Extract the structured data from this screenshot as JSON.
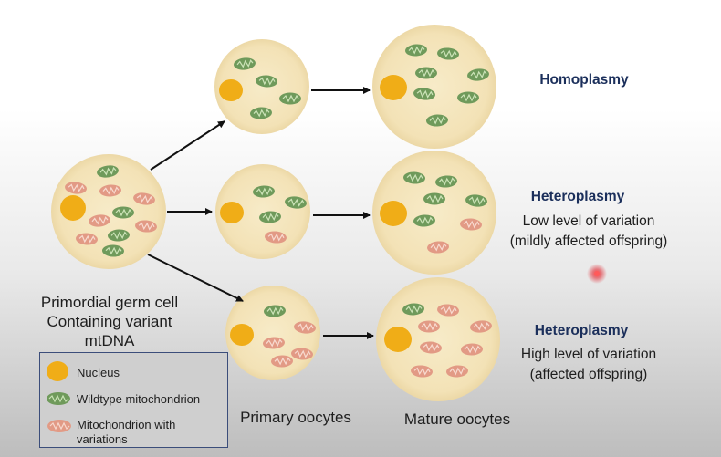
{
  "labels": {
    "germ_cell": [
      "Primordial germ cell",
      "Containing variant",
      "mtDNA"
    ],
    "primary_oocytes": "Primary oocytes",
    "mature_oocytes": "Mature oocytes"
  },
  "outcomes": [
    {
      "title": "Homoplasmy",
      "lines": []
    },
    {
      "title": "Heteroplasmy",
      "lines": [
        "Low level of variation",
        "(mildly affected offspring)"
      ]
    },
    {
      "title": "Heteroplasmy",
      "lines": [
        "High level of variation",
        "(affected offspring)"
      ]
    }
  ],
  "legend": {
    "nucleus": "Nucleus",
    "wildtype": "Wildtype mitochondrion",
    "variant": [
      "Mitochondrion with",
      "variations"
    ]
  },
  "colors": {
    "cell_fill": "#f4e6bf",
    "nucleus": "#f0ad17",
    "wildtype_mito": "#6f9a5b",
    "variant_mito": "#e29a85",
    "title_text": "#1b2f5b",
    "pointer": "#e0202a"
  }
}
